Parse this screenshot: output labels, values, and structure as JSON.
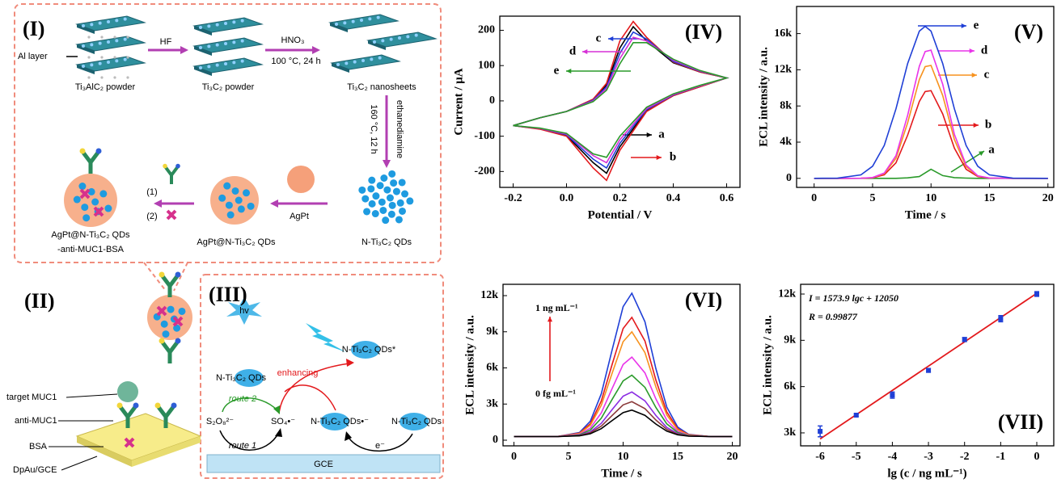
{
  "chart_data": [
    {
      "type": "line",
      "panel": "(IV)",
      "x_label": "Potential / V",
      "y_label": "Current / μA",
      "x": [
        -0.2,
        -0.1,
        0,
        0.1,
        0.15,
        0.2,
        0.25,
        0.3,
        0.4,
        0.5,
        0.6,
        0.5,
        0.4,
        0.3,
        0.2,
        0.15,
        0.1,
        0,
        -0.1,
        -0.2
      ],
      "xlim": [
        -0.25,
        0.65
      ],
      "xticks": [
        -0.2,
        {
          "value": 0,
          "label": "0.0"
        },
        0.2,
        0.4,
        0.6
      ],
      "ylim": [
        -245,
        240
      ],
      "yticks": [
        -200,
        -100,
        0,
        100,
        200
      ],
      "series": [
        {
          "name": "a",
          "color": "#000000",
          "values": [
            -70,
            -48,
            -30,
            3,
            45,
            150,
            210,
            170,
            108,
            82,
            65,
            40,
            15,
            -28,
            -130,
            -205,
            -175,
            -98,
            -79,
            -70
          ]
        },
        {
          "name": "b",
          "color": "#e3191c",
          "values": [
            -70,
            -48,
            -30,
            5,
            50,
            170,
            225,
            180,
            110,
            82,
            65,
            40,
            15,
            -30,
            -140,
            -225,
            -190,
            -100,
            -80,
            -70
          ]
        },
        {
          "name": "c",
          "color": "#1f3fd6",
          "values": [
            -70,
            -48,
            -30,
            2,
            40,
            135,
            195,
            175,
            112,
            84,
            65,
            42,
            17,
            -25,
            -120,
            -190,
            -165,
            -96,
            -78,
            -70
          ]
        },
        {
          "name": "d",
          "color": "#d631d6",
          "values": [
            -70,
            -48,
            -30,
            0,
            35,
            120,
            180,
            170,
            115,
            85,
            65,
            42,
            18,
            -22,
            -110,
            -175,
            -155,
            -94,
            -78,
            -70
          ]
        },
        {
          "name": "e",
          "color": "#2a9a2a",
          "values": [
            -70,
            -48,
            -30,
            -2,
            30,
            105,
            165,
            165,
            118,
            86,
            65,
            44,
            20,
            -18,
            -100,
            -160,
            -150,
            -92,
            -77,
            -70
          ]
        }
      ]
    },
    {
      "type": "line",
      "panel": "(V)",
      "x_label": "Time / s",
      "y_label": "ECL intensity / a.u.",
      "x": [
        0,
        2,
        4,
        5,
        6,
        7,
        8,
        9,
        9.5,
        10,
        11,
        12,
        13,
        14,
        15,
        17,
        20
      ],
      "xlim": [
        -1.5,
        20.5
      ],
      "xticks": [
        0,
        5,
        10,
        15,
        20
      ],
      "ylim": [
        -1000,
        19000
      ],
      "yticks": [
        0,
        {
          "value": 4000,
          "label": "4k"
        },
        {
          "value": 8000,
          "label": "8k"
        },
        {
          "value": 12000,
          "label": "12k"
        },
        {
          "value": 16000,
          "label": "16k"
        }
      ],
      "series": [
        {
          "name": "a",
          "color": "#2a9a2a",
          "values": [
            0,
            0,
            0,
            0,
            0,
            0,
            50,
            200,
            600,
            1000,
            300,
            80,
            30,
            0,
            0,
            0,
            0
          ]
        },
        {
          "name": "b",
          "color": "#e3191c",
          "values": [
            0,
            0,
            5,
            58,
            395,
            1720,
            4770,
            8500,
            9600,
            9700,
            7120,
            3340,
            1010,
            195,
            24,
            0,
            0
          ]
        },
        {
          "name": "c",
          "color": "#f7921e",
          "values": [
            0,
            0,
            7,
            75,
            508,
            2211,
            6132,
            10925,
            12352,
            12484,
            9154,
            4291,
            1295,
            249,
            31,
            0,
            0
          ]
        },
        {
          "name": "d",
          "color": "#e934e9",
          "values": [
            0,
            0,
            8,
            85,
            577,
            2510,
            6960,
            12400,
            14020,
            14170,
            10390,
            4870,
            1470,
            283,
            35,
            0,
            0
          ]
        },
        {
          "name": "e",
          "color": "#1f3fd6",
          "values": [
            0,
            15,
            383,
            1337,
            3630,
            7690,
            12690,
            16280,
            16800,
            16280,
            12690,
            7690,
            3630,
            1337,
            383,
            15,
            0
          ]
        }
      ]
    },
    {
      "type": "line",
      "panel": "(VI)",
      "x_label": "Time / s",
      "y_label": "ECL intensity / a.u.",
      "annotations": [
        "1 ng mL⁻¹",
        "0 fg mL⁻¹"
      ],
      "x": [
        0,
        2,
        4,
        6,
        7,
        8,
        9,
        10,
        10.8,
        12,
        13,
        14,
        15,
        16,
        18,
        20
      ],
      "xlim": [
        -1,
        20.7
      ],
      "xticks": [
        0,
        5,
        10,
        15,
        20
      ],
      "ylim": [
        -470,
        12940
      ],
      "yticks": [
        0,
        {
          "value": 3000,
          "label": "3k"
        },
        {
          "value": 6000,
          "label": "6k"
        },
        {
          "value": 9000,
          "label": "9k"
        },
        {
          "value": 12000,
          "label": "12k"
        }
      ],
      "series": [
        {
          "color": "#1f3fd6",
          "values": [
            300,
            300,
            310,
            639,
            1585,
            3846,
            7523,
            11081,
            12200,
            9832,
            5941,
            2751,
            1085,
            484,
            300,
            300
          ]
        },
        {
          "color": "#e3191c",
          "values": [
            300,
            300,
            308,
            582,
            1369,
            3250,
            6309,
            9269,
            10200,
            8230,
            4993,
            2339,
            953,
            453,
            300,
            300
          ]
        },
        {
          "color": "#f7921e",
          "values": [
            300,
            300,
            307,
            548,
            1240,
            2893,
            5581,
            8182,
            9000,
            7269,
            4424,
            2092,
            874,
            435,
            300,
            300
          ]
        },
        {
          "color": "#e934e9",
          "values": [
            300,
            300,
            305,
            488,
            1013,
            2267,
            4306,
            6280,
            6900,
            5587,
            3428,
            1660,
            736,
            402,
            300,
            300
          ]
        },
        {
          "color": "#2a9a2a",
          "values": [
            300,
            300,
            304,
            445,
            851,
            1820,
            3396,
            4921,
            5400,
            4385,
            2717,
            1351,
            637,
            379,
            300,
            300
          ]
        },
        {
          "color": "#8a2be2",
          "values": [
            300,
            300,
            303,
            405,
            700,
            1403,
            2546,
            3652,
            4000,
            3264,
            2054,
            1062,
            544,
            357,
            300,
            300
          ]
        },
        {
          "color": "#8b3a3a",
          "values": [
            300,
            300,
            302,
            383,
            613,
            1164,
            2060,
            2927,
            3200,
            2623,
            1675,
            897,
            491,
            345,
            300,
            300
          ]
        },
        {
          "color": "#000000",
          "values": [
            300,
            300,
            302,
            363,
            538,
            956,
            1635,
            2293,
            2500,
            2062,
            1343,
            753,
            445,
            334,
            300,
            300
          ]
        }
      ]
    },
    {
      "type": "scatter",
      "panel": "(VII)",
      "x_label": "lg (c / ng mL⁻¹)",
      "y_label": "ECL intensity / a.u.",
      "annotations": [
        "I = 1573.9 lgc + 12050",
        "R = 0.99877"
      ],
      "x": [
        -6,
        -5,
        -4,
        -3,
        -2,
        -1,
        0
      ],
      "xlim": [
        -6.54,
        0.47
      ],
      "xticks": [
        -6,
        -5,
        -4,
        -3,
        -2,
        -1,
        0
      ],
      "ylim": [
        2160,
        12630
      ],
      "yticks": [
        {
          "value": 3000,
          "label": "3k"
        },
        {
          "value": 6000,
          "label": "6k"
        },
        {
          "value": 9000,
          "label": "9k"
        },
        {
          "value": 12000,
          "label": "12k"
        }
      ],
      "series": [
        {
          "color": "#1f3fd6",
          "values": [
            3100,
            4150,
            5450,
            7050,
            9050,
            10400,
            12000
          ],
          "errors": [
            350,
            80,
            200,
            120,
            130,
            200,
            150
          ]
        }
      ],
      "fit": {
        "color": "#e3191c",
        "x": [
          -6,
          0
        ],
        "values": [
          2606,
          12050
        ]
      }
    }
  ],
  "scheme": {
    "panel_I": {
      "label": "(I)",
      "al_layer": "Al layer",
      "hf": "HF",
      "hno3": "HNO₃",
      "etch_condition": "100 °C, 24 h",
      "ti3alc2": "Ti₃AlC₂ powder",
      "ti3c2": "Ti₃C₂ powder",
      "nanosheets": "Ti₃C₂ nanosheets",
      "qd_condition": "160 °C, 12 h",
      "ethanediamine": "ethanediamine",
      "qds": "N-Ti₃C₂ QDs",
      "agpt": "AgPt",
      "agpt_qds": "AgPt@N-Ti₃C₂ QDs",
      "step_1": "(1)",
      "step_2": "(2)",
      "probe": [
        "AgPt@N-Ti₃C₂ QDs",
        "-anti-MUC1-BSA"
      ]
    },
    "panel_II": {
      "label": "(II)",
      "target": "target MUC1",
      "antibody": "anti-MUC1",
      "bsa": "BSA",
      "electrode": "DpAu/GCE"
    },
    "panel_III": {
      "label": "(III)",
      "light": "hv",
      "excited": "N-Ti₃C₂ QDs*",
      "enhancing": "enhancing",
      "qds": "N-Ti₃C₂ QDs",
      "route_2": "route 2",
      "persulfate": "S₂O₈²⁻",
      "radical": "SO₄•⁻",
      "route_1": "route 1",
      "anion": "N-Ti₃C₂ QDs•⁻",
      "qds_right": "N-Ti₃C₂ QDs",
      "electron": "e⁻",
      "electrode": "GCE"
    }
  }
}
